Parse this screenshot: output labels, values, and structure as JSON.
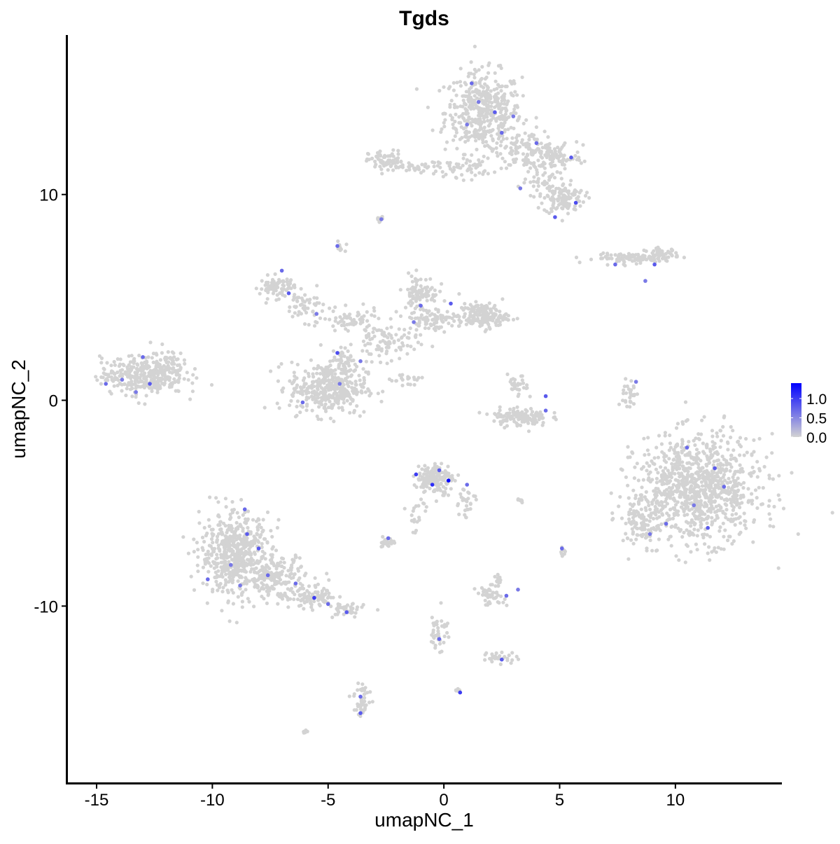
{
  "chart_data": {
    "type": "scatter",
    "title": "Tgds",
    "xlabel": "umapNC_1",
    "ylabel": "umapNC_2",
    "xlim": [
      -16.3,
      14.6
    ],
    "ylim": [
      -18.6,
      17.75
    ],
    "xticks": [
      -15,
      -10,
      -5,
      0,
      5,
      10
    ],
    "xtick_labels": [
      "-15",
      "-10",
      "-5",
      "0",
      "5",
      "10"
    ],
    "yticks": [
      -10,
      0,
      10
    ],
    "ytick_labels": [
      "-10",
      "0",
      "10"
    ],
    "grid": false,
    "legend": {
      "position": "right",
      "type": "colorbar",
      "ticks": [
        0.0,
        0.5,
        1.0
      ],
      "tick_labels": [
        "0.0",
        "0.5",
        "1.0"
      ],
      "range": [
        0,
        1.4
      ]
    },
    "colors": {
      "low": "#D3D3D3",
      "high": "#0000FF"
    },
    "background_clusters": [
      {
        "cx": 1.7,
        "cy": 14.0,
        "sx": 1.1,
        "sy": 1.3,
        "n": 450
      },
      {
        "cx": 3.6,
        "cy": 12.2,
        "sx": 0.9,
        "sy": 0.6,
        "n": 120
      },
      {
        "cx": 4.8,
        "cy": 11.8,
        "sx": 0.8,
        "sy": 0.4,
        "n": 80
      },
      {
        "cx": 5.2,
        "cy": 9.8,
        "sx": 0.6,
        "sy": 0.5,
        "n": 110
      },
      {
        "cx": 4.2,
        "cy": 10.6,
        "sx": 0.5,
        "sy": 0.6,
        "n": 50
      },
      {
        "cx": -2.5,
        "cy": 11.6,
        "sx": 0.5,
        "sy": 0.35,
        "n": 70
      },
      {
        "cx": -1.0,
        "cy": 11.3,
        "sx": 0.8,
        "sy": 0.2,
        "n": 30
      },
      {
        "cx": 0.9,
        "cy": 11.3,
        "sx": 0.8,
        "sy": 0.3,
        "n": 50
      },
      {
        "cx": -2.8,
        "cy": 8.8,
        "sx": 0.12,
        "sy": 0.1,
        "n": 10
      },
      {
        "cx": -4.5,
        "cy": 7.4,
        "sx": 0.15,
        "sy": 0.2,
        "n": 10
      },
      {
        "cx": 8.2,
        "cy": 6.9,
        "sx": 1.1,
        "sy": 0.15,
        "n": 90
      },
      {
        "cx": 9.4,
        "cy": 7.1,
        "sx": 0.5,
        "sy": 0.2,
        "n": 50
      },
      {
        "cx": -7.2,
        "cy": 5.5,
        "sx": 0.5,
        "sy": 0.35,
        "n": 80
      },
      {
        "cx": -6.0,
        "cy": 4.6,
        "sx": 0.6,
        "sy": 0.5,
        "n": 50
      },
      {
        "cx": -4.0,
        "cy": 3.8,
        "sx": 0.8,
        "sy": 0.4,
        "n": 60
      },
      {
        "cx": -2.5,
        "cy": 2.8,
        "sx": 0.9,
        "sy": 0.6,
        "n": 90
      },
      {
        "cx": -5.0,
        "cy": 0.6,
        "sx": 1.1,
        "sy": 0.85,
        "n": 380
      },
      {
        "cx": -4.3,
        "cy": 1.9,
        "sx": 0.4,
        "sy": 0.5,
        "n": 40
      },
      {
        "cx": -1.0,
        "cy": 5.2,
        "sx": 0.5,
        "sy": 0.6,
        "n": 90
      },
      {
        "cx": -0.6,
        "cy": 3.9,
        "sx": 0.8,
        "sy": 0.35,
        "n": 80
      },
      {
        "cx": 1.7,
        "cy": 4.1,
        "sx": 0.7,
        "sy": 0.4,
        "n": 170
      },
      {
        "cx": -1.6,
        "cy": 1.0,
        "sx": 0.5,
        "sy": 0.3,
        "n": 20
      },
      {
        "cx": -13.0,
        "cy": 1.2,
        "sx": 1.2,
        "sy": 0.6,
        "n": 330
      },
      {
        "cx": -12.0,
        "cy": 1.8,
        "sx": 0.5,
        "sy": 0.5,
        "n": 60
      },
      {
        "cx": 3.3,
        "cy": -0.8,
        "sx": 0.8,
        "sy": 0.3,
        "n": 130
      },
      {
        "cx": 3.2,
        "cy": 0.6,
        "sx": 0.3,
        "sy": 0.4,
        "n": 30
      },
      {
        "cx": 8.0,
        "cy": 0.2,
        "sx": 0.2,
        "sy": 0.6,
        "n": 30
      },
      {
        "cx": 11.0,
        "cy": -4.3,
        "sx": 1.8,
        "sy": 1.7,
        "n": 1000
      },
      {
        "cx": 8.5,
        "cy": -5.8,
        "sx": 0.5,
        "sy": 0.8,
        "n": 90
      },
      {
        "cx": -0.4,
        "cy": -3.8,
        "sx": 0.5,
        "sy": 0.5,
        "n": 160
      },
      {
        "cx": 0.9,
        "cy": -5.0,
        "sx": 0.3,
        "sy": 0.6,
        "n": 30
      },
      {
        "cx": -1.1,
        "cy": -5.5,
        "sx": 0.4,
        "sy": 0.6,
        "n": 20
      },
      {
        "cx": -9.0,
        "cy": -7.5,
        "sx": 1.0,
        "sy": 1.3,
        "n": 560
      },
      {
        "cx": -7.2,
        "cy": -8.6,
        "sx": 0.8,
        "sy": 0.7,
        "n": 170
      },
      {
        "cx": -5.6,
        "cy": -9.6,
        "sx": 0.7,
        "sy": 0.35,
        "n": 90
      },
      {
        "cx": -4.2,
        "cy": -10.2,
        "sx": 0.5,
        "sy": 0.25,
        "n": 40
      },
      {
        "cx": -2.5,
        "cy": -6.9,
        "sx": 0.25,
        "sy": 0.15,
        "n": 25
      },
      {
        "cx": 2.0,
        "cy": -9.5,
        "sx": 0.4,
        "sy": 0.3,
        "n": 40
      },
      {
        "cx": 2.4,
        "cy": -8.8,
        "sx": 0.2,
        "sy": 0.2,
        "n": 15
      },
      {
        "cx": 2.4,
        "cy": -12.5,
        "sx": 0.5,
        "sy": 0.2,
        "n": 30
      },
      {
        "cx": -3.5,
        "cy": -14.5,
        "sx": 0.25,
        "sy": 0.6,
        "n": 40
      },
      {
        "cx": -6.0,
        "cy": -16.1,
        "sx": 0.1,
        "sy": 0.08,
        "n": 6
      },
      {
        "cx": 0.6,
        "cy": -14.1,
        "sx": 0.08,
        "sy": 0.06,
        "n": 5
      },
      {
        "cx": -0.2,
        "cy": -11.2,
        "sx": 0.25,
        "sy": 0.7,
        "n": 40
      },
      {
        "cx": 5.1,
        "cy": -7.3,
        "sx": 0.1,
        "sy": 0.2,
        "n": 8
      },
      {
        "cx": 3.3,
        "cy": -4.9,
        "sx": 0.2,
        "sy": 0.1,
        "n": 8
      }
    ],
    "expressing_points": [
      {
        "x": 1.2,
        "y": 15.4,
        "v": 0.7
      },
      {
        "x": 1.5,
        "y": 14.5,
        "v": 0.6
      },
      {
        "x": 2.2,
        "y": 14.0,
        "v": 0.8
      },
      {
        "x": 1.0,
        "y": 13.4,
        "v": 0.6
      },
      {
        "x": 2.5,
        "y": 13.0,
        "v": 0.7
      },
      {
        "x": 3.0,
        "y": 13.8,
        "v": 0.6
      },
      {
        "x": 4.0,
        "y": 12.5,
        "v": 0.7
      },
      {
        "x": 5.5,
        "y": 11.8,
        "v": 0.8
      },
      {
        "x": 5.7,
        "y": 9.6,
        "v": 0.9
      },
      {
        "x": 4.8,
        "y": 8.9,
        "v": 0.8
      },
      {
        "x": 3.3,
        "y": 10.3,
        "v": 0.6
      },
      {
        "x": -2.7,
        "y": 8.8,
        "v": 0.6
      },
      {
        "x": -4.6,
        "y": 7.5,
        "v": 0.7
      },
      {
        "x": 7.4,
        "y": 6.6,
        "v": 0.7
      },
      {
        "x": 9.1,
        "y": 6.6,
        "v": 0.8
      },
      {
        "x": 8.7,
        "y": 5.8,
        "v": 0.6
      },
      {
        "x": -7.0,
        "y": 6.3,
        "v": 0.7
      },
      {
        "x": -6.7,
        "y": 5.2,
        "v": 0.8
      },
      {
        "x": -5.5,
        "y": 4.2,
        "v": 0.6
      },
      {
        "x": -4.6,
        "y": 2.3,
        "v": 0.9
      },
      {
        "x": -4.5,
        "y": 0.8,
        "v": 0.6
      },
      {
        "x": -6.1,
        "y": -0.1,
        "v": 0.7
      },
      {
        "x": -3.6,
        "y": 1.9,
        "v": 0.6
      },
      {
        "x": -1.0,
        "y": 4.6,
        "v": 0.7
      },
      {
        "x": 0.3,
        "y": 4.7,
        "v": 0.8
      },
      {
        "x": -1.3,
        "y": 3.8,
        "v": 0.6
      },
      {
        "x": -14.6,
        "y": 0.8,
        "v": 0.7
      },
      {
        "x": -13.9,
        "y": 1.0,
        "v": 0.6
      },
      {
        "x": -13.0,
        "y": 2.1,
        "v": 0.7
      },
      {
        "x": -12.7,
        "y": 0.8,
        "v": 0.8
      },
      {
        "x": -13.3,
        "y": 0.4,
        "v": 0.6
      },
      {
        "x": 4.4,
        "y": 0.2,
        "v": 0.8
      },
      {
        "x": 4.4,
        "y": -0.5,
        "v": 0.7
      },
      {
        "x": 8.3,
        "y": 0.9,
        "v": 0.6
      },
      {
        "x": 10.5,
        "y": -2.3,
        "v": 0.7
      },
      {
        "x": 11.7,
        "y": -3.3,
        "v": 0.8
      },
      {
        "x": 12.1,
        "y": -4.2,
        "v": 0.7
      },
      {
        "x": 10.8,
        "y": -5.1,
        "v": 0.6
      },
      {
        "x": 9.6,
        "y": -6.0,
        "v": 0.7
      },
      {
        "x": 11.4,
        "y": -6.2,
        "v": 0.8
      },
      {
        "x": 8.9,
        "y": -6.5,
        "v": 0.6
      },
      {
        "x": -1.2,
        "y": -3.6,
        "v": 1.0
      },
      {
        "x": -0.5,
        "y": -4.1,
        "v": 1.1
      },
      {
        "x": 0.2,
        "y": -3.9,
        "v": 1.4
      },
      {
        "x": 1.0,
        "y": -4.1,
        "v": 0.7
      },
      {
        "x": -0.2,
        "y": -3.4,
        "v": 0.8
      },
      {
        "x": -2.4,
        "y": -6.7,
        "v": 0.7
      },
      {
        "x": -8.6,
        "y": -5.3,
        "v": 0.7
      },
      {
        "x": -8.5,
        "y": -6.5,
        "v": 0.8
      },
      {
        "x": -9.2,
        "y": -8.0,
        "v": 0.6
      },
      {
        "x": -10.2,
        "y": -8.7,
        "v": 0.7
      },
      {
        "x": -8.0,
        "y": -7.2,
        "v": 0.8
      },
      {
        "x": -7.6,
        "y": -8.5,
        "v": 0.7
      },
      {
        "x": -8.8,
        "y": -9.0,
        "v": 0.6
      },
      {
        "x": -6.4,
        "y": -8.9,
        "v": 0.7
      },
      {
        "x": -5.6,
        "y": -9.6,
        "v": 1.0
      },
      {
        "x": -5.0,
        "y": -9.9,
        "v": 0.7
      },
      {
        "x": -4.2,
        "y": -10.3,
        "v": 0.8
      },
      {
        "x": 2.7,
        "y": -9.5,
        "v": 0.7
      },
      {
        "x": 3.2,
        "y": -9.2,
        "v": 0.6
      },
      {
        "x": 2.5,
        "y": -12.6,
        "v": 0.8
      },
      {
        "x": 0.7,
        "y": -14.2,
        "v": 1.0
      },
      {
        "x": -3.6,
        "y": -14.4,
        "v": 0.7
      },
      {
        "x": -3.6,
        "y": -15.2,
        "v": 0.8
      },
      {
        "x": -0.2,
        "y": -11.6,
        "v": 0.7
      },
      {
        "x": 5.1,
        "y": -7.2,
        "v": 0.7
      }
    ]
  }
}
